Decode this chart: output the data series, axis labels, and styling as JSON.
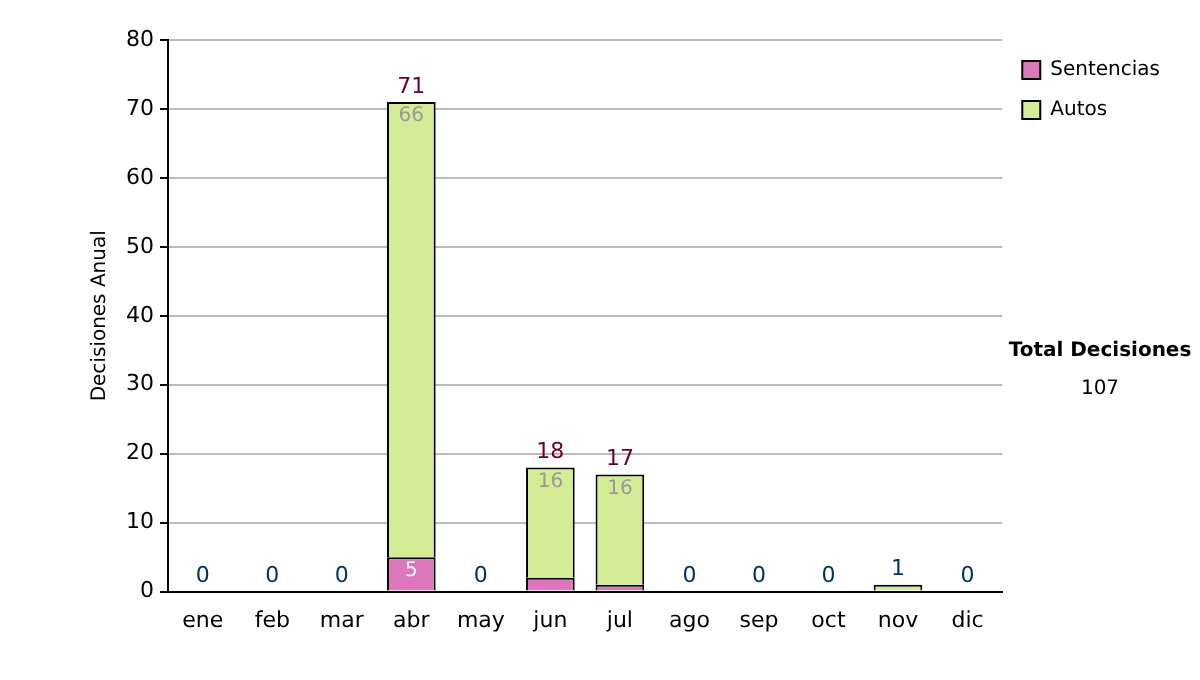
{
  "chart_data": {
    "type": "bar",
    "stacked": true,
    "ylabel": "Decisiones Anual",
    "categories": [
      "ene",
      "feb",
      "mar",
      "abr",
      "may",
      "jun",
      "jul",
      "ago",
      "sep",
      "oct",
      "nov",
      "dic"
    ],
    "series": [
      {
        "name": "Sentencias",
        "color": "#dd77bb",
        "values": [
          0,
          0,
          0,
          5,
          0,
          2,
          1,
          0,
          0,
          0,
          0,
          0
        ],
        "value_labels": [
          null,
          null,
          null,
          "5",
          null,
          null,
          null,
          null,
          null,
          null,
          null,
          null
        ]
      },
      {
        "name": "Autos",
        "color": "#d4ec96",
        "values": [
          0,
          0,
          0,
          66,
          0,
          16,
          16,
          0,
          0,
          0,
          1,
          0
        ],
        "value_labels": [
          null,
          null,
          null,
          "66",
          null,
          "16",
          "16",
          null,
          null,
          null,
          null,
          null
        ]
      }
    ],
    "totals": [
      "0",
      "0",
      "0",
      "71",
      "0",
      "18",
      "17",
      "0",
      "0",
      "0",
      "1",
      "0"
    ],
    "ylim": [
      0,
      80
    ],
    "yticks": [
      0,
      10,
      20,
      30,
      40,
      50,
      60,
      70,
      80
    ],
    "grid": "y",
    "legend": "right",
    "annotations": [
      "Total Decisiones",
      "107"
    ]
  }
}
